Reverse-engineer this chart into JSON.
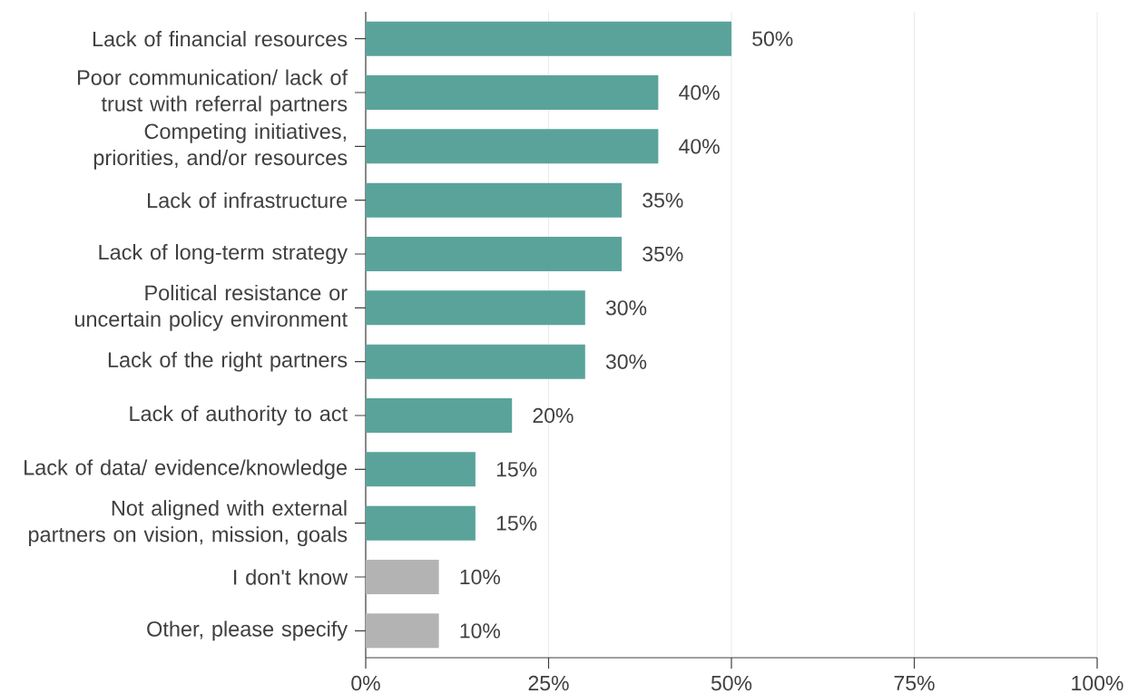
{
  "chart_data": {
    "type": "bar",
    "orientation": "horizontal",
    "categories": [
      "Lack of financial resources",
      "Poor communication/ lack of trust with referral partners",
      "Competing initiatives, priorities, and/or resources",
      "Lack of infrastructure",
      "Lack of long-term strategy",
      "Political resistance or uncertain policy environment",
      "Lack of the right partners",
      "Lack of authority to act",
      "Lack of data/ evidence/knowledge",
      "Not aligned with external partners on vision, mission, goals",
      "I don't know",
      "Other, please specify"
    ],
    "values": [
      50,
      40,
      40,
      35,
      35,
      30,
      30,
      20,
      15,
      15,
      10,
      10
    ],
    "colors": [
      "#5aa39b",
      "#5aa39b",
      "#5aa39b",
      "#5aa39b",
      "#5aa39b",
      "#5aa39b",
      "#5aa39b",
      "#5aa39b",
      "#5aa39b",
      "#5aa39b",
      "#b3b3b3",
      "#b3b3b3"
    ],
    "value_labels": [
      "50%",
      "40%",
      "40%",
      "35%",
      "35%",
      "30%",
      "30%",
      "20%",
      "15%",
      "15%",
      "10%",
      "10%"
    ],
    "xlim": [
      0,
      100
    ],
    "xticks": [
      {
        "value": 0,
        "label": "0%"
      },
      {
        "value": 25,
        "label": "25%"
      },
      {
        "value": 50,
        "label": "50%"
      },
      {
        "value": 75,
        "label": "75%"
      },
      {
        "value": 100,
        "label": "100%"
      }
    ],
    "grid": "x"
  }
}
